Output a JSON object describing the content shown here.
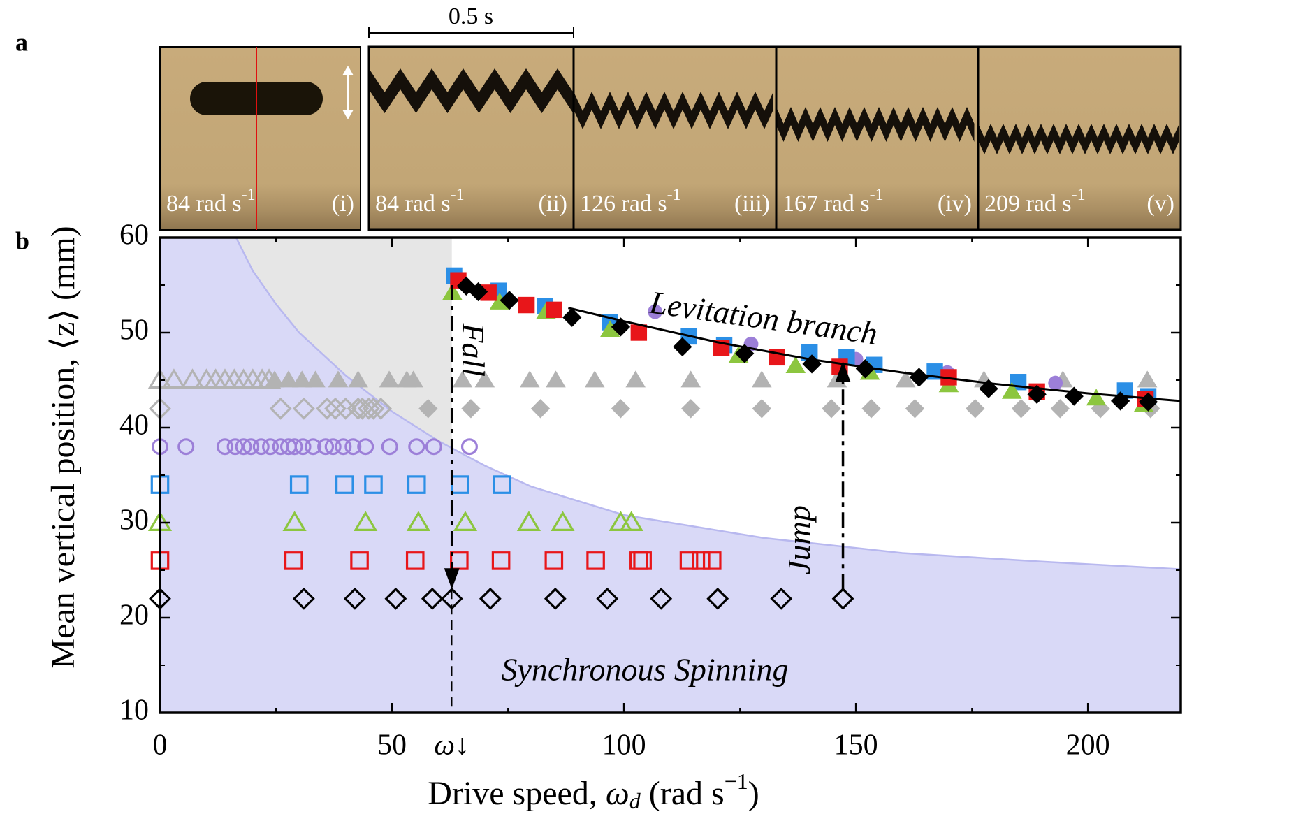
{
  "panel_labels": [
    "a",
    "b"
  ],
  "scale_bar": "0.5 s",
  "photos": [
    {
      "speed": "84 rad s",
      "sup": "-1",
      "index": "(i)"
    },
    {
      "speed": "84 rad s",
      "sup": "-1",
      "index": "(ii)"
    },
    {
      "speed": "126 rad s",
      "sup": "-1",
      "index": "(iii)"
    },
    {
      "speed": "167 rad s",
      "sup": "-1",
      "index": "(iv)"
    },
    {
      "speed": "209 rad s",
      "sup": "-1",
      "index": "(v)"
    }
  ],
  "chart_data": {
    "type": "scatter",
    "xlabel": [
      "Drive speed, ",
      "ω",
      "d",
      " (rad s",
      "−1",
      ")"
    ],
    "ylabel": [
      "Mean vertical position, ",
      "⟨z⟩",
      " (mm)"
    ],
    "xlim": [
      0,
      220
    ],
    "ylim": [
      10,
      60
    ],
    "xticks": [
      0,
      50,
      100,
      150,
      200
    ],
    "yticks": [
      10,
      20,
      30,
      40,
      50,
      60
    ],
    "special_xtick": {
      "value": 62.9,
      "label": "ω↓"
    },
    "region_boundary": {
      "x": [
        16.4,
        20,
        25,
        30,
        40,
        50,
        60,
        70,
        80,
        100,
        130,
        160,
        190,
        220
      ],
      "y": [
        60,
        56.5,
        53,
        50,
        45.5,
        41.7,
        38.6,
        36,
        33.8,
        30.8,
        28.4,
        26.8,
        25.9,
        25.1
      ],
      "color": "#d9d9f7",
      "edge_color": "#b8b8ef",
      "gray_color": "#e6e6e6",
      "gray_until": 62.9
    },
    "series": [
      {
        "marker": "triangle",
        "filled": false,
        "color": "#b3b3b3",
        "x": [
          0,
          3,
          7,
          10,
          12,
          14,
          16,
          18,
          20,
          22,
          23.5
        ],
        "y": [
          45,
          45,
          45,
          45,
          45,
          45,
          45,
          45,
          45,
          45,
          45
        ]
      },
      {
        "marker": "triangle",
        "filled": true,
        "color": "#b3b3b3",
        "x": [
          24.7,
          27.7,
          30.6,
          33.5,
          38.4,
          42.7,
          49.4,
          53.2,
          54.6,
          65.2,
          70,
          79.7,
          85.3,
          93.7,
          102.5,
          114.4,
          129.7,
          145.9,
          160.7,
          177.6,
          194.6,
          212.8
        ],
        "y": [
          45,
          45,
          45,
          45,
          45,
          45,
          45,
          45,
          45,
          45,
          45,
          45,
          45,
          45,
          45,
          45,
          45,
          45,
          45,
          45,
          45,
          45
        ]
      },
      {
        "marker": "diamond",
        "filled": false,
        "color": "#b3b3b3",
        "x": [
          0,
          26,
          31,
          36,
          37.8,
          40,
          42.7,
          43.6,
          45,
          46,
          47.6
        ],
        "y": [
          42,
          42,
          42,
          42,
          42,
          42,
          42,
          42,
          42,
          42,
          42
        ]
      },
      {
        "marker": "diamond",
        "filled": true,
        "color": "#b3b3b3",
        "x": [
          57.8,
          67,
          82,
          99.3,
          114.4,
          129.7,
          144.7,
          153.3,
          162.7,
          175.7,
          185.6,
          194,
          202.7,
          213.5
        ],
        "y": [
          42,
          42,
          42,
          42,
          42,
          42,
          42,
          42,
          42,
          42,
          42,
          42,
          42,
          42
        ]
      },
      {
        "marker": "circle",
        "filled": false,
        "color": "#9c7fd8",
        "x": [
          0,
          5.6,
          14,
          16.2,
          18,
          19.6,
          21.8,
          23.8,
          26,
          27.7,
          29,
          30.8,
          33,
          35.7,
          37.3,
          39.5,
          41.6,
          44.3,
          49.5,
          55.3,
          59,
          66.7
        ],
        "y": [
          38,
          38,
          38,
          38,
          38,
          38,
          38,
          38,
          38,
          38,
          38,
          38,
          38,
          38,
          38,
          38,
          38,
          38,
          38,
          38,
          38,
          38
        ]
      },
      {
        "marker": "circle",
        "filled": true,
        "color": "#9c7fd8",
        "x": [
          106.7,
          127.4,
          150,
          169.7,
          193
        ],
        "y": [
          52.2,
          48.8,
          47.2,
          45.8,
          44.7
        ]
      },
      {
        "marker": "square",
        "filled": false,
        "color": "#2b8fe6",
        "x": [
          0,
          30,
          39.8,
          46,
          55.3,
          64.7,
          73.7
        ],
        "y": [
          34,
          34,
          34,
          34,
          34,
          34,
          34
        ]
      },
      {
        "marker": "square",
        "filled": true,
        "color": "#2b8fe6",
        "x": [
          63.4,
          73,
          83,
          97,
          114,
          121.6,
          140,
          148,
          154,
          167,
          185,
          208,
          213
        ],
        "y": [
          56,
          54.4,
          52.8,
          51.1,
          49.6,
          48.7,
          47.9,
          47.4,
          46.6,
          45.9,
          44.8,
          43.9,
          43.3
        ]
      },
      {
        "marker": "triangle",
        "filled": false,
        "color": "#8cc63f",
        "x": [
          0,
          29,
          44.3,
          55.7,
          65.8,
          79.5,
          86.8,
          99.3,
          101.6
        ],
        "y": [
          30,
          30,
          30,
          30,
          30,
          30,
          30,
          30,
          30
        ]
      },
      {
        "marker": "triangle",
        "filled": true,
        "color": "#8cc63f",
        "x": [
          63,
          73.2,
          83.2,
          97,
          124.7,
          137,
          153,
          170,
          183.6,
          201.8,
          212
        ],
        "y": [
          54.2,
          53.2,
          52.2,
          50.3,
          47.6,
          46.5,
          45.8,
          44.5,
          43.8,
          43.1,
          42.4
        ]
      },
      {
        "marker": "square",
        "filled": false,
        "color": "#e8161a",
        "x": [
          0,
          28.8,
          43,
          55,
          64.5,
          73.5,
          84.9,
          93.9,
          103.2,
          104,
          114,
          116.6,
          119
        ],
        "y": [
          26,
          26,
          26,
          26,
          26,
          26,
          26,
          26,
          26,
          26,
          26,
          26,
          26
        ]
      },
      {
        "marker": "square",
        "filled": true,
        "color": "#e8161a",
        "x": [
          64.3,
          70.8,
          79,
          84.9,
          103.2,
          121,
          133,
          146.5,
          170,
          189,
          212.4
        ],
        "y": [
          55.5,
          54.2,
          52.9,
          52.4,
          50,
          48.4,
          47.4,
          46.4,
          45.3,
          43.8,
          43
        ]
      },
      {
        "marker": "diamond",
        "filled": false,
        "color": "#000000",
        "x": [
          0,
          31,
          42,
          50.8,
          58.7,
          62.9,
          71.2,
          85.2,
          96.4,
          108,
          120.2,
          133.9,
          147.2
        ],
        "y": [
          22,
          22,
          22,
          22,
          22,
          22,
          22,
          22,
          22,
          22,
          22,
          22,
          22
        ]
      },
      {
        "marker": "diamond",
        "filled": true,
        "color": "#000000",
        "x": [
          66,
          68.6,
          75.3,
          88.8,
          99.3,
          112.6,
          126,
          140.5,
          152,
          163.6,
          178.6,
          189,
          197,
          207,
          213
        ],
        "y": [
          54.9,
          54.3,
          53.4,
          51.6,
          50.6,
          48.5,
          47.8,
          46.7,
          46.2,
          45.3,
          44.1,
          43.5,
          43.3,
          42.8,
          42.7
        ]
      }
    ],
    "model_curve": {
      "color": "#000000",
      "x": [
        88,
        100,
        120,
        140,
        160,
        180,
        200,
        220
      ],
      "y": [
        52.6,
        51.2,
        49.0,
        47.2,
        45.8,
        44.6,
        43.6,
        42.8
      ]
    },
    "arrows": [
      {
        "x": 62.9,
        "from": 55,
        "to": 23,
        "label": "Fall",
        "guide_to": 10
      },
      {
        "x": 147.2,
        "from": 23,
        "to": 47,
        "label": "Jump"
      }
    ],
    "annotations": {
      "levitation": "Levitation branch",
      "synchronous": "Synchronous Spinning"
    }
  }
}
